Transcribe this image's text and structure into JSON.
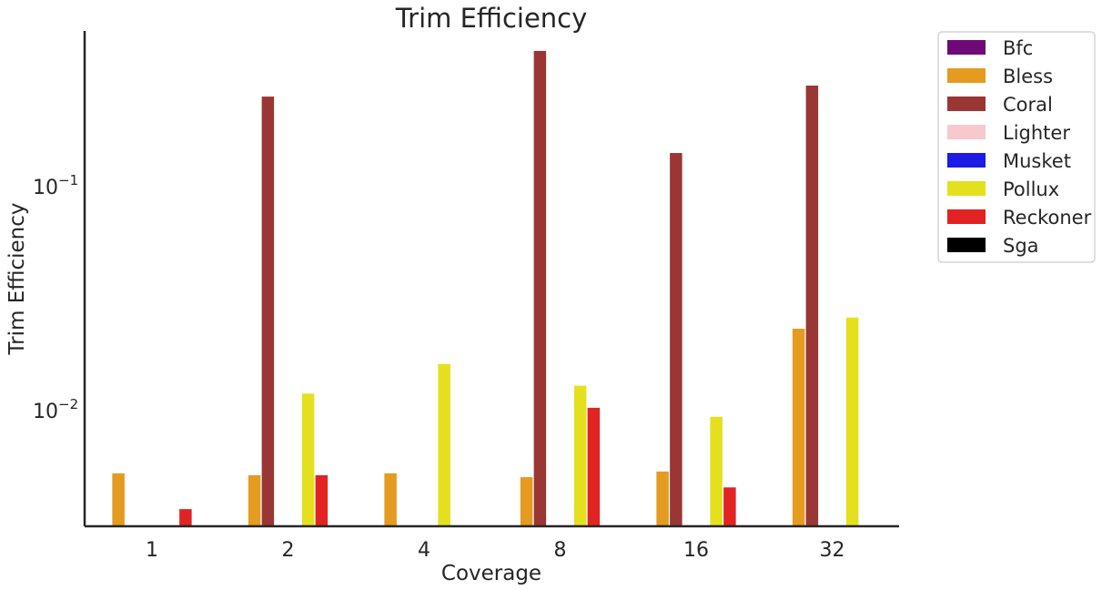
{
  "chart_data": {
    "type": "bar",
    "title": "Trim Efficiency",
    "xlabel": "Coverage",
    "ylabel": "Trim Efficiency",
    "yscale": "log",
    "ylim": [
      0.003,
      0.5
    ],
    "yticks": [
      {
        "value": 0.01,
        "base": "10",
        "exp": "−2"
      },
      {
        "value": 0.1,
        "base": "10",
        "exp": "−1"
      }
    ],
    "categories": [
      "1",
      "2",
      "4",
      "8",
      "16",
      "32"
    ],
    "series": [
      {
        "name": "Bfc",
        "color": "#6e0a78",
        "values": [
          null,
          null,
          null,
          null,
          null,
          null
        ]
      },
      {
        "name": "Bless",
        "color": "#e49b20",
        "values": [
          0.0052,
          0.0051,
          0.0052,
          0.005,
          0.0053,
          0.023
        ]
      },
      {
        "name": "Coral",
        "color": "#9a3634",
        "values": [
          null,
          0.25,
          null,
          0.4,
          0.14,
          0.28
        ]
      },
      {
        "name": "Lighter",
        "color": "#f8c8cf",
        "values": [
          null,
          null,
          null,
          null,
          null,
          null
        ]
      },
      {
        "name": "Musket",
        "color": "#1b1be4",
        "values": [
          null,
          null,
          null,
          null,
          null,
          null
        ]
      },
      {
        "name": "Pollux",
        "color": "#e4e01e",
        "values": [
          null,
          0.0118,
          0.016,
          0.0128,
          0.0093,
          0.0258
        ]
      },
      {
        "name": "Reckoner",
        "color": "#e12323",
        "values": [
          0.0036,
          0.0051,
          null,
          0.0102,
          0.0045,
          null
        ]
      },
      {
        "name": "Sga",
        "color": "#000000",
        "values": [
          null,
          null,
          null,
          null,
          null,
          null
        ]
      }
    ],
    "legend_position": "outside-right",
    "grid": false
  }
}
